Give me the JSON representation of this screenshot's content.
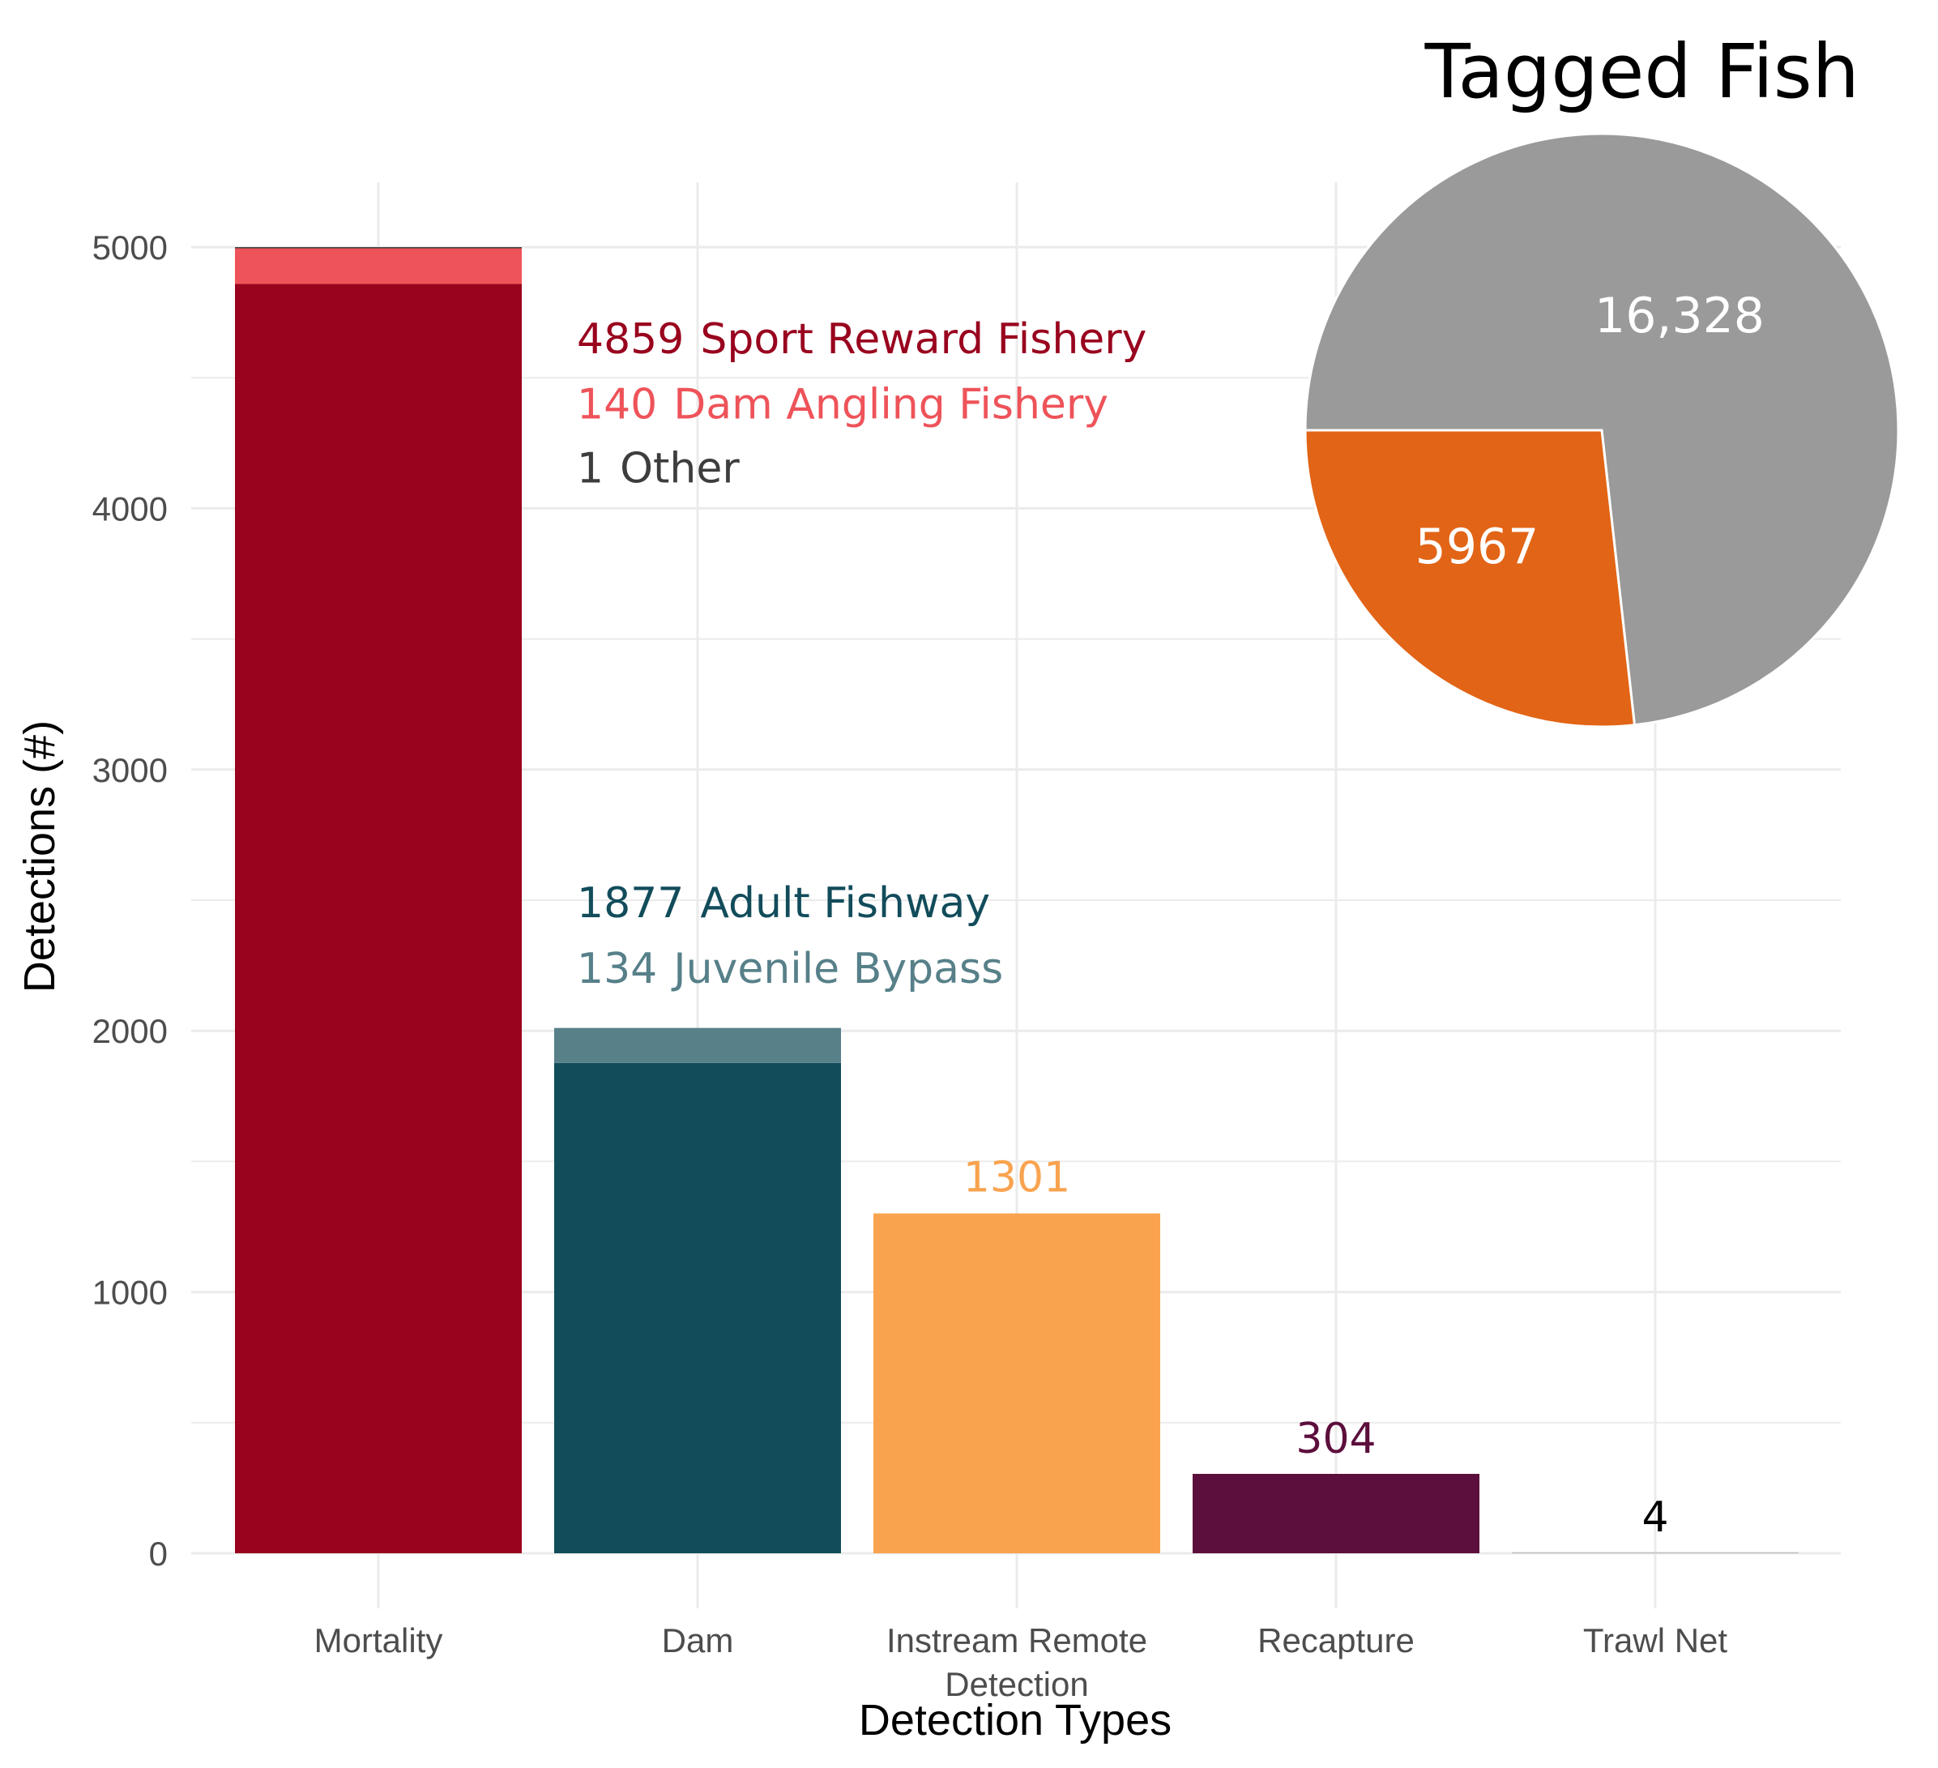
{
  "chart_data": [
    {
      "type": "bar",
      "xlabel": "Detection Types",
      "ylabel": "Detections (#)",
      "ylim": [
        0,
        5250
      ],
      "yticks": [
        0,
        1000,
        2000,
        3000,
        4000,
        5000
      ],
      "grid": true,
      "categories": [
        {
          "label": [
            "Mortality"
          ]
        },
        {
          "label": [
            "Dam"
          ]
        },
        {
          "label": [
            "Instream Remote",
            "Detection"
          ]
        },
        {
          "label": [
            "Recapture"
          ]
        },
        {
          "label": [
            "Trawl Net"
          ]
        }
      ],
      "stacks": [
        [
          {
            "name": "Sport Reward Fishery",
            "value": 4859,
            "color": "#99031e"
          },
          {
            "name": "Dam Angling Fishery",
            "value": 140,
            "color": "#ee5359"
          },
          {
            "name": "Other",
            "value": 1,
            "color": "#3d3d3d"
          }
        ],
        [
          {
            "name": "Adult Fishway",
            "value": 1877,
            "color": "#124c5b"
          },
          {
            "name": "Juvenile Bypass",
            "value": 134,
            "color": "#578089"
          }
        ],
        [
          {
            "name": "",
            "value": 1301,
            "color": "#f9a34f"
          }
        ],
        [
          {
            "name": "",
            "value": 304,
            "color": "#5c0f3c"
          }
        ],
        [
          {
            "name": "",
            "value": 4,
            "color": "#bfbfbf"
          }
        ]
      ],
      "annotations": [
        {
          "value": "4859",
          "text": "Sport Reward Fishery",
          "color": "#99031e",
          "anchor": 4650
        },
        {
          "value": "140",
          "text": "Dam Angling Fishery",
          "color": "#ee5359",
          "anchor": 4400
        },
        {
          "value": "1",
          "text": "Other",
          "color": "#3d3d3d",
          "anchor": 4155
        },
        {
          "value": "1877",
          "text": "Adult Fishway",
          "color": "#124c5b",
          "anchor": 2490
        },
        {
          "value": "134",
          "text": "Juvenile Bypass",
          "color": "#578089",
          "anchor": 2240
        },
        {
          "value": "1301",
          "text": "",
          "color": "#f9a34f",
          "anchor": 1440,
          "bar": 2
        },
        {
          "value": "304",
          "text": "",
          "color": "#5c0f3c",
          "anchor": 440,
          "bar": 3
        },
        {
          "value": "4",
          "text": "",
          "color": "#000000",
          "anchor": 140,
          "bar": 4
        }
      ]
    },
    {
      "type": "pie",
      "title": "Tagged Fish",
      "slices": [
        {
          "label": "16,328",
          "value": 16328,
          "color": "#9a9a9a"
        },
        {
          "label": "5967",
          "value": 5967,
          "color": "#e26416"
        }
      ]
    }
  ]
}
